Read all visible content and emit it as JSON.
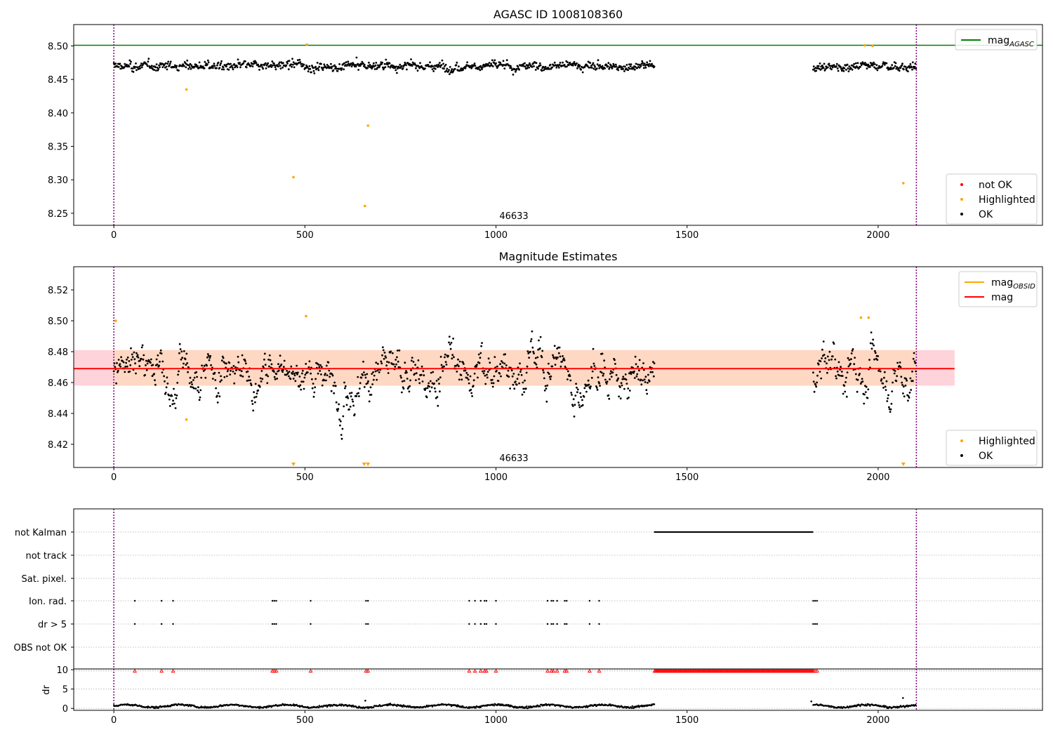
{
  "chart_data": [
    {
      "id": "agasc",
      "type": "scatter",
      "title": "AGASC ID 1008108360",
      "annotation": "46633",
      "xlim": [
        -105,
        2430
      ],
      "ylim": [
        8.232,
        8.532
      ],
      "xticks": [
        0,
        500,
        1000,
        1500,
        2000
      ],
      "yticks": [
        8.25,
        8.3,
        8.35,
        8.4,
        8.45,
        8.5
      ],
      "ytick_labels": [
        "8.25",
        "8.30",
        "8.35",
        "8.40",
        "8.45",
        "8.50"
      ],
      "vlines": [
        0,
        2100
      ],
      "hlines": [
        {
          "y": 8.501,
          "color": "#008000",
          "x0": -105,
          "x1": 2430
        }
      ],
      "legend_top": [
        {
          "label": "mag",
          "sub": "AGASC",
          "color": "#008000",
          "kind": "line"
        }
      ],
      "legend_bottom": [
        {
          "label": "not OK",
          "color": "#ff0000",
          "kind": "dot"
        },
        {
          "label": "Highlighted",
          "color": "#ffa500",
          "kind": "dot"
        },
        {
          "label": "OK",
          "color": "#000000",
          "kind": "dot"
        }
      ],
      "highlighted_points": [
        [
          505,
          8.502
        ],
        [
          190,
          8.435
        ],
        [
          470,
          8.304
        ],
        [
          665,
          8.381
        ],
        [
          657,
          8.261
        ],
        [
          1965,
          8.501
        ],
        [
          1985,
          8.5
        ],
        [
          2066,
          8.295
        ]
      ],
      "ok_segments": [
        [
          0,
          1415,
          8.47
        ],
        [
          1830,
          2100,
          8.47
        ]
      ]
    },
    {
      "id": "estimates",
      "type": "scatter",
      "title": "Magnitude Estimates",
      "annotation": "46633",
      "xlim": [
        -105,
        2430
      ],
      "ylim": [
        8.405,
        8.535
      ],
      "xticks": [
        0,
        500,
        1000,
        1500,
        2000
      ],
      "yticks": [
        8.42,
        8.44,
        8.46,
        8.48,
        8.5,
        8.52
      ],
      "ytick_labels": [
        "8.42",
        "8.44",
        "8.46",
        "8.48",
        "8.50",
        "8.52"
      ],
      "vlines": [
        0,
        2100
      ],
      "bands": [
        {
          "x0": -105,
          "x1": 2200,
          "y0": 8.458,
          "y1": 8.481,
          "color": "#ffc0cb"
        },
        {
          "x0": 0,
          "x1": 2100,
          "y0": 8.458,
          "y1": 8.481,
          "color": "#ffdab9"
        }
      ],
      "hlines": [
        {
          "y": 8.469,
          "color": "#ff0000",
          "x0": -105,
          "x1": 2200
        }
      ],
      "legend_top": [
        {
          "label": "mag",
          "sub": "OBSID",
          "color": "#ffa500",
          "kind": "line"
        },
        {
          "label": "mag",
          "sub": "",
          "color": "#ff0000",
          "kind": "line"
        }
      ],
      "legend_bottom": [
        {
          "label": "Highlighted",
          "color": "#ffa500",
          "kind": "dot"
        },
        {
          "label": "OK",
          "color": "#000000",
          "kind": "dot"
        }
      ],
      "highlighted_points": [
        [
          5,
          8.5
        ],
        [
          503,
          8.503
        ],
        [
          190,
          8.436
        ],
        [
          1955,
          8.502
        ],
        [
          1975,
          8.502
        ]
      ],
      "lower_limit_markers": [
        470,
        655,
        665,
        2066
      ],
      "ok_segments": [
        [
          0,
          1415,
          8.469
        ],
        [
          1830,
          2100,
          8.469
        ]
      ]
    },
    {
      "id": "flags",
      "type": "scatter",
      "title": "",
      "xlim": [
        -105,
        2430
      ],
      "categories": [
        "not Kalman",
        "not track",
        "Sat. pixel.",
        "Ion. rad.",
        "dr > 5",
        "OBS not OK"
      ],
      "vlines": [
        0,
        2100
      ],
      "not_kalman_range": [
        1415,
        1830
      ],
      "ion_rad_x": [
        55,
        125,
        155,
        415,
        420,
        425,
        515,
        660,
        665,
        930,
        945,
        960,
        970,
        975,
        1000,
        1135,
        1145,
        1150,
        1160,
        1180,
        1185,
        1245,
        1270,
        1830,
        1835,
        1840
      ],
      "dr_gt5_x": [
        55,
        125,
        155,
        415,
        420,
        425,
        515,
        660,
        665,
        930,
        945,
        960,
        970,
        975,
        1000,
        1135,
        1145,
        1150,
        1160,
        1180,
        1185,
        1245,
        1270,
        1830,
        1835,
        1840
      ]
    },
    {
      "id": "dr",
      "type": "scatter",
      "ylabel": "dr",
      "xlim": [
        -105,
        2430
      ],
      "ylim": [
        -0.5,
        10.2
      ],
      "xticks": [
        0,
        500,
        1000,
        1500,
        2000
      ],
      "yticks": [
        0,
        5,
        10
      ],
      "ytick_labels": [
        "0",
        "5",
        "10"
      ],
      "vlines": [
        0,
        2100
      ],
      "red_marker_y": 9.7,
      "segments": [
        [
          0,
          1415
        ],
        [
          1830,
          2100
        ]
      ],
      "outliers": [
        [
          658,
          2.0
        ],
        [
          1825,
          1.8
        ],
        [
          2065,
          2.7
        ]
      ]
    }
  ]
}
